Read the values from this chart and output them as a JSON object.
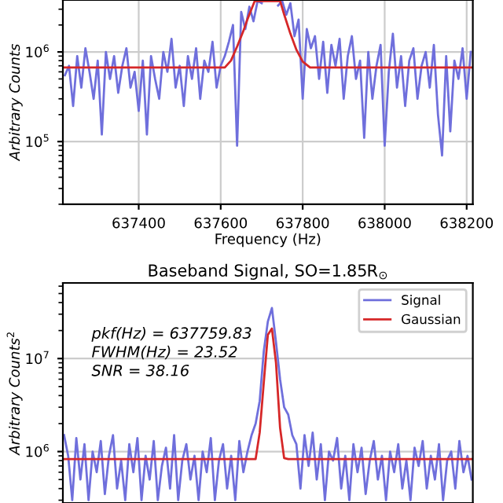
{
  "chart_data": [
    {
      "type": "line",
      "xlabel": "Frequency (Hz)",
      "ylabel": "Arbitrary Counts",
      "log": "y",
      "grid": true,
      "legend": false,
      "xlim": [
        637215,
        638215
      ],
      "xticks": [
        637400,
        637600,
        637800,
        638000,
        638200
      ],
      "ylim": [
        20000,
        3800000
      ],
      "yticks": [
        {
          "value": 100000,
          "label": "10$^{5}$"
        },
        {
          "value": 1000000,
          "label": "10$^{6}$"
        }
      ],
      "series": [
        {
          "color": "#6f6fdc",
          "x": [
            637220,
            637230,
            637240,
            637250,
            637260,
            637270,
            637280,
            637290,
            637300,
            637310,
            637320,
            637330,
            637340,
            637350,
            637360,
            637370,
            637380,
            637390,
            637400,
            637410,
            637420,
            637430,
            637440,
            637450,
            637460,
            637470,
            637480,
            637490,
            637500,
            637510,
            637520,
            637530,
            637540,
            637550,
            637560,
            637570,
            637580,
            637590,
            637600,
            637610,
            637620,
            637630,
            637640,
            637650,
            637660,
            637670,
            637680,
            637690,
            637700,
            637710,
            637720,
            637730,
            637740,
            637750,
            637760,
            637770,
            637780,
            637790,
            637800,
            637810,
            637820,
            637830,
            637840,
            637850,
            637860,
            637870,
            637880,
            637890,
            637900,
            637910,
            637920,
            637930,
            637940,
            637950,
            637960,
            637970,
            637980,
            637990,
            638000,
            638010,
            638020,
            638030,
            638040,
            638050,
            638060,
            638070,
            638080,
            638090,
            638100,
            638110,
            638120,
            638130,
            638140,
            638150,
            638160,
            638170,
            638180,
            638190,
            638200,
            638210
          ],
          "values": [
            550000,
            700000,
            250000,
            900000,
            400000,
            1100000,
            600000,
            300000,
            800000,
            120000,
            1000000,
            500000,
            900000,
            350000,
            700000,
            1100000,
            400000,
            600000,
            220000,
            800000,
            120000,
            900000,
            500000,
            300000,
            1000000,
            600000,
            1400000,
            400000,
            700000,
            250000,
            900000,
            500000,
            1100000,
            300000,
            800000,
            600000,
            1300000,
            400000,
            700000,
            900000,
            1300000,
            2000000,
            90000,
            2800000,
            1800000,
            3200000,
            2200000,
            3700000,
            3500000,
            null,
            null,
            null,
            3300000,
            3700000,
            2600000,
            3500000,
            1500000,
            2300000,
            300000,
            1800000,
            1100000,
            1500000,
            500000,
            1300000,
            350000,
            1200000,
            700000,
            1400000,
            300000,
            900000,
            1500000,
            500000,
            800000,
            110000,
            1000000,
            300000,
            700000,
            1200000,
            90000,
            600000,
            1600000,
            400000,
            900000,
            250000,
            800000,
            1100000,
            300000,
            700000,
            1000000,
            400000,
            1200000,
            200000,
            70000,
            900000,
            130000,
            800000,
            500000,
            1100000,
            300000,
            1000000
          ]
        },
        {
          "color": "#d62728",
          "x": [
            637215,
            637610,
            637625,
            637640,
            637655,
            637665,
            637675,
            637683,
            637745,
            637755,
            637770,
            637785,
            637800,
            637818,
            638215
          ],
          "values": [
            670000,
            670000,
            800000,
            1150000,
            1700000,
            2300000,
            3000000,
            3700000,
            3700000,
            2600000,
            1600000,
            1050000,
            780000,
            670000,
            670000
          ]
        }
      ]
    },
    {
      "type": "line",
      "title": "Baseband Signal, SO=1.85R$_{⊙}$",
      "ylabel": "Arbitrary Counts$^{2}$",
      "log": "y",
      "grid": "y",
      "legend": "top right",
      "tick_labels": "y",
      "categories": [
        null,
        null,
        null,
        null,
        null,
        null,
        null,
        null,
        null,
        null,
        null,
        null,
        null,
        null,
        null,
        null,
        null,
        null,
        null,
        null,
        null,
        null,
        null,
        null,
        null,
        null,
        null,
        null,
        null,
        null,
        null,
        null,
        null,
        null,
        null,
        null,
        null,
        null,
        null,
        null,
        null,
        null,
        null,
        null,
        null,
        null,
        null,
        null,
        null,
        null,
        null,
        null,
        null,
        null,
        null,
        null,
        null,
        null,
        null,
        null,
        null,
        null,
        null,
        null,
        null,
        null,
        null,
        null,
        null,
        null,
        null,
        null,
        null,
        null,
        null,
        null,
        null,
        null,
        null,
        null,
        null,
        null,
        null,
        null,
        null,
        null,
        null,
        null,
        null,
        null,
        null,
        null,
        null,
        null,
        null,
        null,
        null,
        null,
        null,
        null,
        null
      ],
      "ylim": [
        280000,
        65000000
      ],
      "yticks": [
        {
          "value": 1000000,
          "label": "10$^{6}$"
        },
        {
          "value": 10000000,
          "label": "10$^{7}$"
        }
      ],
      "annotations": [
        "pkf(Hz) = 637759.83",
        "FWHM(Hz) = 23.52",
        "SNR = 38.16"
      ],
      "series": [
        {
          "name": "Signal",
          "color": "#6f6fdc",
          "values": [
            1500000,
            900000,
            300000,
            1400000,
            500000,
            1200000,
            300000,
            1000000,
            600000,
            1300000,
            350000,
            900000,
            1500000,
            400000,
            800000,
            300000,
            1200000,
            600000,
            1400000,
            300000,
            900000,
            500000,
            1300000,
            300000,
            700000,
            1100000,
            400000,
            1500000,
            300000,
            800000,
            1200000,
            500000,
            900000,
            300000,
            1000000,
            600000,
            1400000,
            300000,
            800000,
            1200000,
            400000,
            900000,
            300000,
            1300000,
            600000,
            1000000,
            1500000,
            2000000,
            3500000,
            12000000,
            25000000,
            35000000,
            15000000,
            6000000,
            3000000,
            2500000,
            1500000,
            1200000,
            400000,
            1500000,
            700000,
            1600000,
            500000,
            1200000,
            300000,
            1000000,
            800000,
            1400000,
            400000,
            900000,
            300000,
            1200000,
            600000,
            1100000,
            350000,
            800000,
            1300000,
            500000,
            900000,
            300000,
            1000000,
            600000,
            1200000,
            400000,
            800000,
            300000,
            1100000,
            700000,
            1300000,
            400000,
            900000,
            500000,
            1200000,
            300000,
            800000,
            1000000,
            400000,
            1300000,
            600000,
            900000,
            500000
          ]
        },
        {
          "name": "Gaussian",
          "color": "#d62728",
          "values": [
            830000,
            830000,
            830000,
            830000,
            830000,
            830000,
            830000,
            830000,
            830000,
            830000,
            830000,
            830000,
            830000,
            830000,
            830000,
            830000,
            830000,
            830000,
            830000,
            830000,
            830000,
            830000,
            830000,
            830000,
            830000,
            830000,
            830000,
            830000,
            830000,
            830000,
            830000,
            830000,
            830000,
            830000,
            830000,
            830000,
            830000,
            830000,
            830000,
            830000,
            830000,
            830000,
            830000,
            830000,
            830000,
            830000,
            830000,
            830000,
            1600000,
            5500000,
            18000000,
            21000000,
            9000000,
            1800000,
            850000,
            830000,
            830000,
            830000,
            830000,
            830000,
            830000,
            830000,
            830000,
            830000,
            830000,
            830000,
            830000,
            830000,
            830000,
            830000,
            830000,
            830000,
            830000,
            830000,
            830000,
            830000,
            830000,
            830000,
            830000,
            830000,
            830000,
            830000,
            830000,
            830000,
            830000,
            830000,
            830000,
            830000,
            830000,
            830000,
            830000,
            830000,
            830000,
            830000,
            830000,
            830000,
            830000,
            830000,
            830000,
            830000,
            830000
          ]
        }
      ]
    }
  ]
}
